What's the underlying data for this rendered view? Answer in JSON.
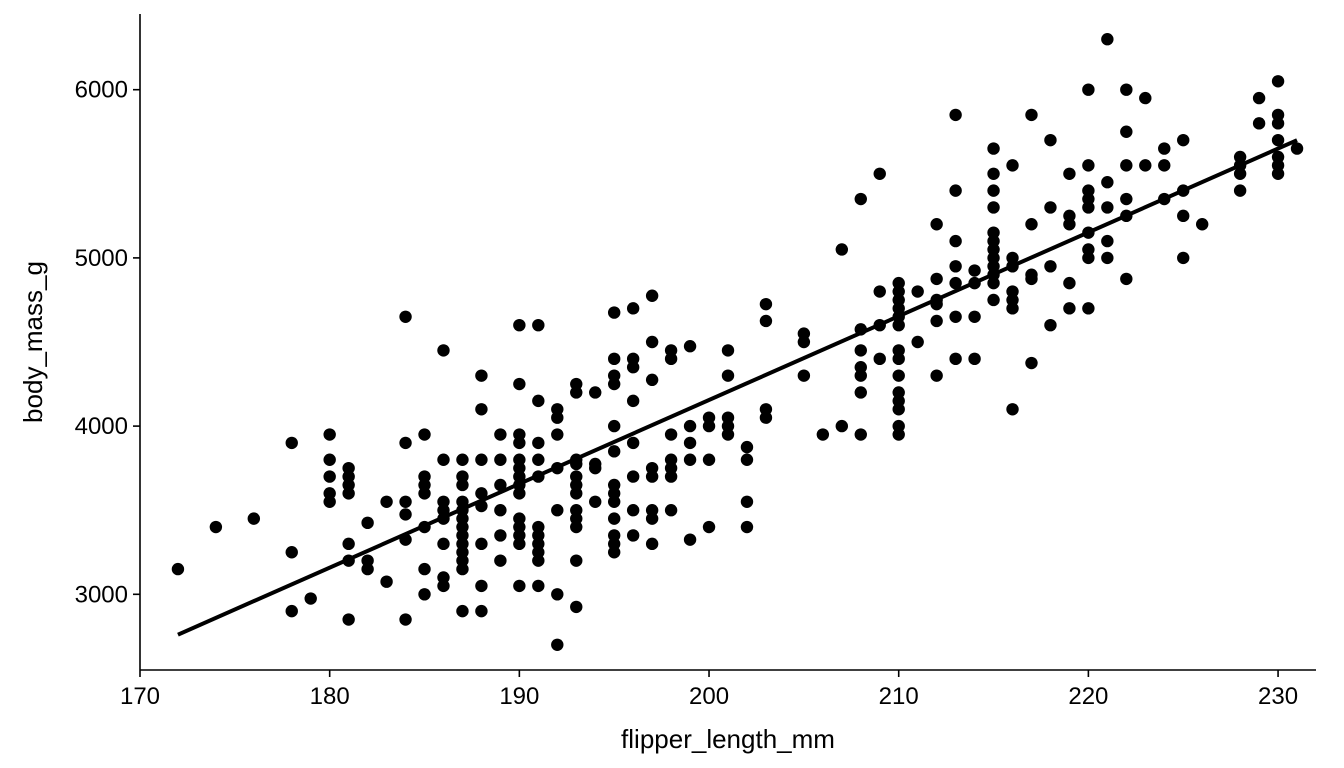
{
  "chart_data": {
    "type": "scatter",
    "xlabel": "flipper_length_mm",
    "ylabel": "body_mass_g",
    "xlim": [
      170,
      232
    ],
    "ylim": [
      2550,
      6450
    ],
    "x_ticks": [
      "170",
      "180",
      "190",
      "200",
      "210",
      "220",
      "230"
    ],
    "y_ticks": [
      "3000",
      "4000",
      "5000",
      "6000"
    ],
    "grid": false,
    "legend": "none",
    "point_color": "#000000",
    "trend_line": {
      "type": "linear",
      "x": [
        172,
        231
      ],
      "y": [
        2760,
        5700
      ]
    },
    "points": [
      [
        172,
        3150
      ],
      [
        174,
        3400
      ],
      [
        176,
        3450
      ],
      [
        178,
        3900
      ],
      [
        178,
        3250
      ],
      [
        178,
        2900
      ],
      [
        179,
        2975
      ],
      [
        180,
        3950
      ],
      [
        180,
        3800
      ],
      [
        180,
        3700
      ],
      [
        180,
        3600
      ],
      [
        180,
        3550
      ],
      [
        181,
        3750
      ],
      [
        181,
        3700
      ],
      [
        181,
        3650
      ],
      [
        181,
        3600
      ],
      [
        181,
        3300
      ],
      [
        181,
        3200
      ],
      [
        181,
        2850
      ],
      [
        182,
        3425
      ],
      [
        182,
        3200
      ],
      [
        182,
        3150
      ],
      [
        183,
        3550
      ],
      [
        183,
        3075
      ],
      [
        184,
        4650
      ],
      [
        184,
        3900
      ],
      [
        184,
        3550
      ],
      [
        184,
        3475
      ],
      [
        184,
        3325
      ],
      [
        184,
        2850
      ],
      [
        185,
        3950
      ],
      [
        185,
        3700
      ],
      [
        185,
        3650
      ],
      [
        185,
        3600
      ],
      [
        185,
        3400
      ],
      [
        185,
        3150
      ],
      [
        185,
        3000
      ],
      [
        186,
        4450
      ],
      [
        186,
        3800
      ],
      [
        186,
        3550
      ],
      [
        186,
        3500
      ],
      [
        186,
        3450
      ],
      [
        186,
        3300
      ],
      [
        186,
        3100
      ],
      [
        186,
        3050
      ],
      [
        187,
        3800
      ],
      [
        187,
        3700
      ],
      [
        187,
        3650
      ],
      [
        187,
        3550
      ],
      [
        187,
        3500
      ],
      [
        187,
        3450
      ],
      [
        187,
        3400
      ],
      [
        187,
        3350
      ],
      [
        187,
        3300
      ],
      [
        187,
        3250
      ],
      [
        187,
        3200
      ],
      [
        187,
        3150
      ],
      [
        187,
        2900
      ],
      [
        188,
        4300
      ],
      [
        188,
        4100
      ],
      [
        188,
        3800
      ],
      [
        188,
        3600
      ],
      [
        188,
        3525
      ],
      [
        188,
        3300
      ],
      [
        188,
        3050
      ],
      [
        188,
        2900
      ],
      [
        189,
        3950
      ],
      [
        189,
        3800
      ],
      [
        189,
        3650
      ],
      [
        189,
        3500
      ],
      [
        189,
        3350
      ],
      [
        189,
        3200
      ],
      [
        190,
        4600
      ],
      [
        190,
        4250
      ],
      [
        190,
        3950
      ],
      [
        190,
        3900
      ],
      [
        190,
        3800
      ],
      [
        190,
        3750
      ],
      [
        190,
        3700
      ],
      [
        190,
        3650
      ],
      [
        190,
        3600
      ],
      [
        190,
        3450
      ],
      [
        190,
        3400
      ],
      [
        190,
        3350
      ],
      [
        190,
        3300
      ],
      [
        190,
        3050
      ],
      [
        191,
        4600
      ],
      [
        191,
        4150
      ],
      [
        191,
        3900
      ],
      [
        191,
        3800
      ],
      [
        191,
        3700
      ],
      [
        191,
        3400
      ],
      [
        191,
        3350
      ],
      [
        191,
        3300
      ],
      [
        191,
        3250
      ],
      [
        191,
        3200
      ],
      [
        191,
        3050
      ],
      [
        192,
        4100
      ],
      [
        192,
        4050
      ],
      [
        192,
        3950
      ],
      [
        192,
        3750
      ],
      [
        192,
        3500
      ],
      [
        192,
        3000
      ],
      [
        192,
        2700
      ],
      [
        193,
        4250
      ],
      [
        193,
        4200
      ],
      [
        193,
        3800
      ],
      [
        193,
        3775
      ],
      [
        193,
        3700
      ],
      [
        193,
        3650
      ],
      [
        193,
        3600
      ],
      [
        193,
        3500
      ],
      [
        193,
        3450
      ],
      [
        193,
        3400
      ],
      [
        193,
        3200
      ],
      [
        193,
        2925
      ],
      [
        194,
        4200
      ],
      [
        194,
        3775
      ],
      [
        194,
        3750
      ],
      [
        194,
        3550
      ],
      [
        195,
        4675
      ],
      [
        195,
        4400
      ],
      [
        195,
        4300
      ],
      [
        195,
        4250
      ],
      [
        195,
        4000
      ],
      [
        195,
        3850
      ],
      [
        195,
        3650
      ],
      [
        195,
        3600
      ],
      [
        195,
        3550
      ],
      [
        195,
        3450
      ],
      [
        195,
        3350
      ],
      [
        195,
        3300
      ],
      [
        195,
        3250
      ],
      [
        196,
        4700
      ],
      [
        196,
        4400
      ],
      [
        196,
        4350
      ],
      [
        196,
        4150
      ],
      [
        196,
        3900
      ],
      [
        196,
        3700
      ],
      [
        196,
        3500
      ],
      [
        196,
        3350
      ],
      [
        197,
        4775
      ],
      [
        197,
        4500
      ],
      [
        197,
        4275
      ],
      [
        197,
        3750
      ],
      [
        197,
        3700
      ],
      [
        197,
        3500
      ],
      [
        197,
        3450
      ],
      [
        197,
        3300
      ],
      [
        198,
        4450
      ],
      [
        198,
        4400
      ],
      [
        198,
        3950
      ],
      [
        198,
        3800
      ],
      [
        198,
        3750
      ],
      [
        198,
        3700
      ],
      [
        198,
        3500
      ],
      [
        199,
        4475
      ],
      [
        199,
        4000
      ],
      [
        199,
        3900
      ],
      [
        199,
        3800
      ],
      [
        199,
        3325
      ],
      [
        200,
        4050
      ],
      [
        200,
        4000
      ],
      [
        200,
        3800
      ],
      [
        200,
        3400
      ],
      [
        201,
        4450
      ],
      [
        201,
        4300
      ],
      [
        201,
        4050
      ],
      [
        201,
        4000
      ],
      [
        201,
        3950
      ],
      [
        202,
        3875
      ],
      [
        202,
        3800
      ],
      [
        202,
        3550
      ],
      [
        202,
        3400
      ],
      [
        203,
        4725
      ],
      [
        203,
        4625
      ],
      [
        203,
        4100
      ],
      [
        203,
        4050
      ],
      [
        205,
        4550
      ],
      [
        205,
        4500
      ],
      [
        205,
        4300
      ],
      [
        206,
        3950
      ],
      [
        207,
        5050
      ],
      [
        207,
        4000
      ],
      [
        208,
        5350
      ],
      [
        208,
        4575
      ],
      [
        208,
        4450
      ],
      [
        208,
        4350
      ],
      [
        208,
        4300
      ],
      [
        208,
        4200
      ],
      [
        208,
        3950
      ],
      [
        209,
        5500
      ],
      [
        209,
        4800
      ],
      [
        209,
        4600
      ],
      [
        209,
        4400
      ],
      [
        210,
        4850
      ],
      [
        210,
        4800
      ],
      [
        210,
        4750
      ],
      [
        210,
        4700
      ],
      [
        210,
        4650
      ],
      [
        210,
        4600
      ],
      [
        210,
        4450
      ],
      [
        210,
        4400
      ],
      [
        210,
        4300
      ],
      [
        210,
        4200
      ],
      [
        210,
        4150
      ],
      [
        210,
        4100
      ],
      [
        210,
        4000
      ],
      [
        210,
        3950
      ],
      [
        211,
        4800
      ],
      [
        211,
        4500
      ],
      [
        212,
        5200
      ],
      [
        212,
        4875
      ],
      [
        212,
        4750
      ],
      [
        212,
        4725
      ],
      [
        212,
        4625
      ],
      [
        212,
        4300
      ],
      [
        213,
        5850
      ],
      [
        213,
        5400
      ],
      [
        213,
        5100
      ],
      [
        213,
        4950
      ],
      [
        213,
        4850
      ],
      [
        213,
        4650
      ],
      [
        213,
        4400
      ],
      [
        214,
        4925
      ],
      [
        214,
        4850
      ],
      [
        214,
        4650
      ],
      [
        214,
        4400
      ],
      [
        215,
        5650
      ],
      [
        215,
        5500
      ],
      [
        215,
        5400
      ],
      [
        215,
        5300
      ],
      [
        215,
        5150
      ],
      [
        215,
        5100
      ],
      [
        215,
        5050
      ],
      [
        215,
        5000
      ],
      [
        215,
        4950
      ],
      [
        215,
        4900
      ],
      [
        215,
        4850
      ],
      [
        215,
        4750
      ],
      [
        216,
        5550
      ],
      [
        216,
        5000
      ],
      [
        216,
        4950
      ],
      [
        216,
        4800
      ],
      [
        216,
        4750
      ],
      [
        216,
        4700
      ],
      [
        216,
        4100
      ],
      [
        217,
        5850
      ],
      [
        217,
        5200
      ],
      [
        217,
        4900
      ],
      [
        217,
        4875
      ],
      [
        217,
        4375
      ],
      [
        218,
        5700
      ],
      [
        218,
        5300
      ],
      [
        218,
        4950
      ],
      [
        218,
        4600
      ],
      [
        219,
        5500
      ],
      [
        219,
        5250
      ],
      [
        219,
        5200
      ],
      [
        219,
        4850
      ],
      [
        219,
        4700
      ],
      [
        220,
        6000
      ],
      [
        220,
        5550
      ],
      [
        220,
        5400
      ],
      [
        220,
        5350
      ],
      [
        220,
        5300
      ],
      [
        220,
        5150
      ],
      [
        220,
        5050
      ],
      [
        220,
        5000
      ],
      [
        220,
        4700
      ],
      [
        221,
        6300
      ],
      [
        221,
        5450
      ],
      [
        221,
        5300
      ],
      [
        221,
        5100
      ],
      [
        221,
        5000
      ],
      [
        222,
        6000
      ],
      [
        222,
        5750
      ],
      [
        222,
        5550
      ],
      [
        222,
        5350
      ],
      [
        222,
        5250
      ],
      [
        222,
        4875
      ],
      [
        223,
        5950
      ],
      [
        223,
        5550
      ],
      [
        224,
        5650
      ],
      [
        224,
        5550
      ],
      [
        224,
        5350
      ],
      [
        225,
        5700
      ],
      [
        225,
        5400
      ],
      [
        225,
        5250
      ],
      [
        225,
        5000
      ],
      [
        226,
        5200
      ],
      [
        228,
        5600
      ],
      [
        228,
        5550
      ],
      [
        228,
        5500
      ],
      [
        228,
        5400
      ],
      [
        229,
        5950
      ],
      [
        229,
        5800
      ],
      [
        230,
        6050
      ],
      [
        230,
        5850
      ],
      [
        230,
        5800
      ],
      [
        230,
        5700
      ],
      [
        230,
        5600
      ],
      [
        230,
        5550
      ],
      [
        230,
        5500
      ],
      [
        231,
        5650
      ]
    ]
  }
}
